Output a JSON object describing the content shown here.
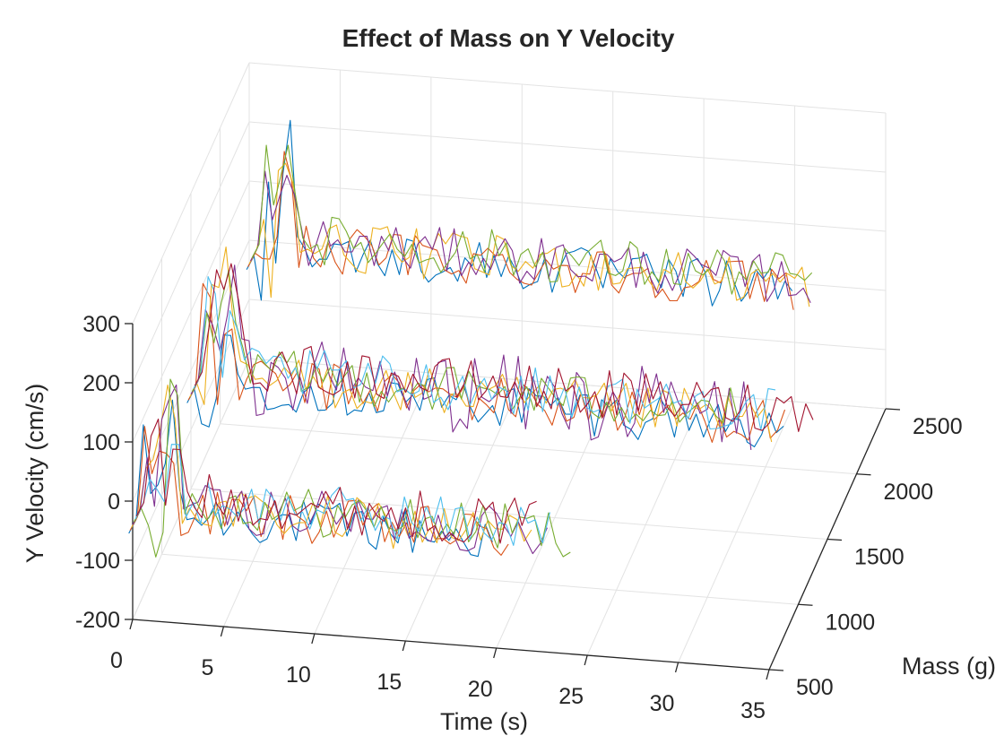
{
  "chart_data": {
    "type": "line",
    "projection": "3d",
    "title": "Effect of Mass on  Y Velocity",
    "xlabel": "Time (s)",
    "ylabel": "Mass (g)",
    "zlabel": "Y Velocity (cm/s)",
    "xlim": [
      0,
      35
    ],
    "ylim": [
      500,
      2500
    ],
    "zlim": [
      -200,
      300
    ],
    "x_ticks": [
      "0",
      "5",
      "10",
      "15",
      "20",
      "25",
      "30",
      "35"
    ],
    "y_ticks": [
      "500",
      "1000",
      "1500",
      "2000",
      "2500"
    ],
    "z_ticks": [
      "-200",
      "-100",
      "0",
      "100",
      "200",
      "300"
    ],
    "grid": true,
    "legend": "none",
    "colors": [
      "#0072BD",
      "#D95319",
      "#EDB120",
      "#7E2F8E",
      "#77AC30",
      "#4DBEEE",
      "#A2142F"
    ],
    "groups": [
      {
        "mass": 500,
        "trials": 7,
        "duration_s": [
          20,
          21,
          22,
          23,
          24,
          23,
          22
        ]
      },
      {
        "mass": 1500,
        "trials": 7,
        "duration_s": [
          33,
          33,
          32,
          31,
          30,
          32,
          34
        ]
      },
      {
        "mass": 2500,
        "trials": 5,
        "duration_s": [
          30,
          30,
          31,
          31,
          31
        ]
      }
    ],
    "steady_velocity_cm_s": 0,
    "peak_velocity_cm_s": 230
  }
}
